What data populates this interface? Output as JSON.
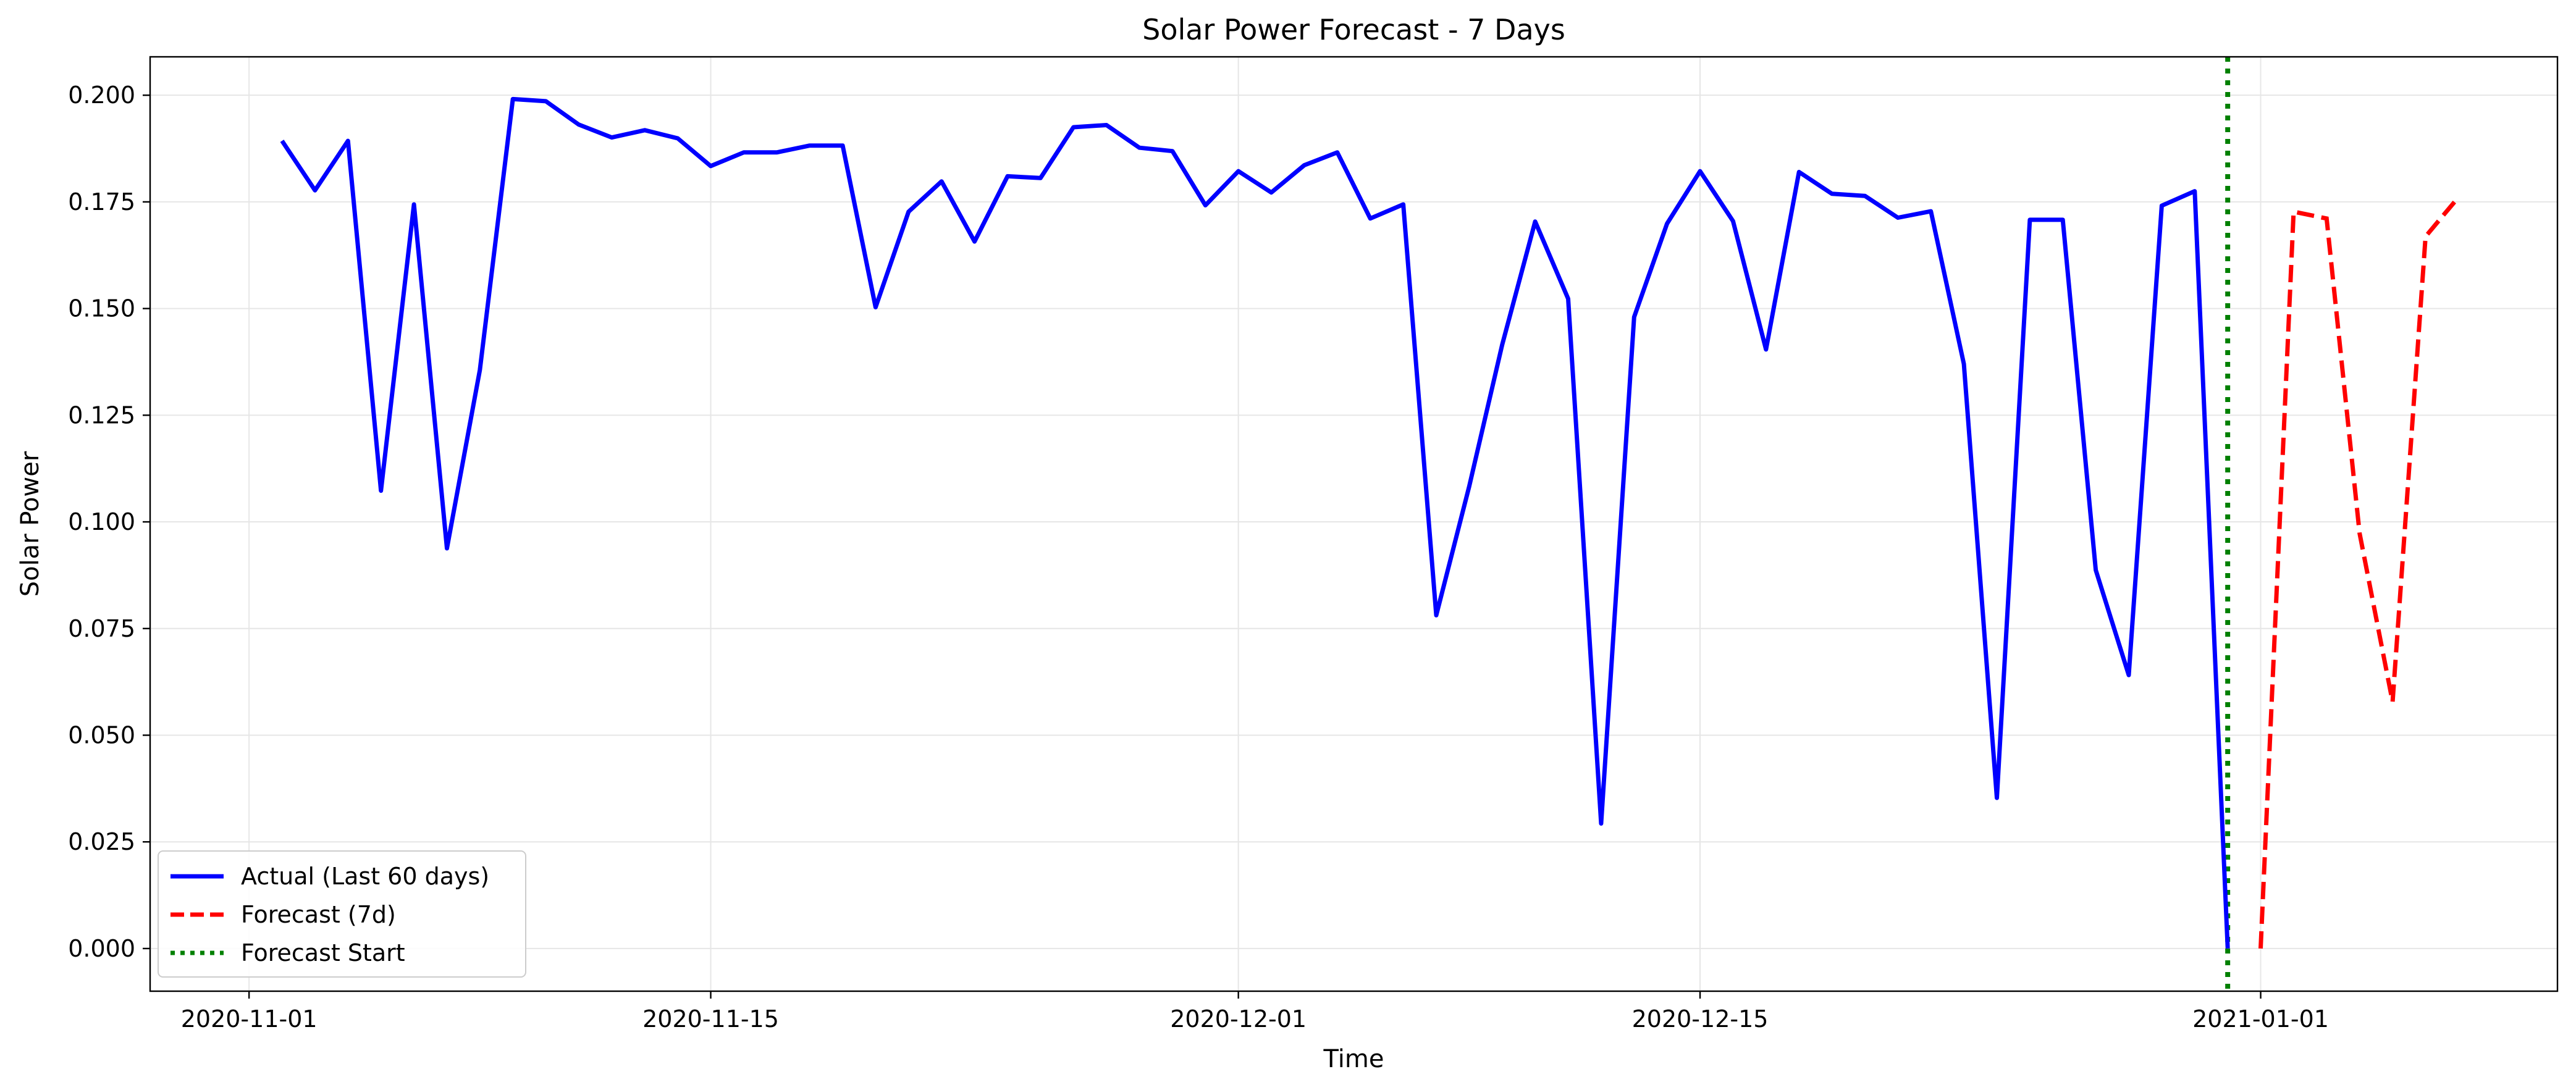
{
  "chart_data": {
    "type": "line",
    "title": "Solar Power Forecast - 7 Days",
    "xlabel": "Time",
    "ylabel": "Solar Power",
    "xlim": [
      "2020-10-29",
      "2021-01-10"
    ],
    "ylim": [
      -0.01,
      0.209
    ],
    "grid": true,
    "legend_position": "lower-left",
    "x_ticks": [
      "2020-11-01",
      "2020-11-15",
      "2020-12-01",
      "2020-12-15",
      "2021-01-01"
    ],
    "y_ticks": [
      "0.000",
      "0.025",
      "0.050",
      "0.075",
      "0.100",
      "0.125",
      "0.150",
      "0.175",
      "0.200"
    ],
    "series": [
      {
        "name": "Actual (Last 60 days)",
        "color": "#0000ff",
        "style": "solid",
        "points": [
          [
            "2020-11-02",
            0.1893
          ],
          [
            "2020-11-03",
            0.1777
          ],
          [
            "2020-11-04",
            0.1893
          ],
          [
            "2020-11-05",
            0.1073
          ],
          [
            "2020-11-06",
            0.1744
          ],
          [
            "2020-11-07",
            0.0938
          ],
          [
            "2020-11-08",
            0.1356
          ],
          [
            "2020-11-09",
            0.1991
          ],
          [
            "2020-11-10",
            0.1986
          ],
          [
            "2020-11-11",
            0.1931
          ],
          [
            "2020-11-12",
            0.1901
          ],
          [
            "2020-11-13",
            0.1918
          ],
          [
            "2020-11-14",
            0.1899
          ],
          [
            "2020-11-15",
            0.1834
          ],
          [
            "2020-11-16",
            0.1866
          ],
          [
            "2020-11-17",
            0.1866
          ],
          [
            "2020-11-18",
            0.1882
          ],
          [
            "2020-11-19",
            0.1882
          ],
          [
            "2020-11-20",
            0.1503
          ],
          [
            "2020-11-21",
            0.1727
          ],
          [
            "2020-11-22",
            0.1798
          ],
          [
            "2020-11-23",
            0.1657
          ],
          [
            "2020-11-24",
            0.181
          ],
          [
            "2020-11-25",
            0.1806
          ],
          [
            "2020-11-26",
            0.1925
          ],
          [
            "2020-11-27",
            0.193
          ],
          [
            "2020-11-28",
            0.1877
          ],
          [
            "2020-11-29",
            0.1869
          ],
          [
            "2020-11-30",
            0.1742
          ],
          [
            "2020-12-01",
            0.1822
          ],
          [
            "2020-12-02",
            0.1772
          ],
          [
            "2020-12-03",
            0.1836
          ],
          [
            "2020-12-04",
            0.1866
          ],
          [
            "2020-12-05",
            0.1711
          ],
          [
            "2020-12-06",
            0.1744
          ],
          [
            "2020-12-07",
            0.0781
          ],
          [
            "2020-12-08",
            0.1083
          ],
          [
            "2020-12-09",
            0.1415
          ],
          [
            "2020-12-10",
            0.1704
          ],
          [
            "2020-12-11",
            0.1523
          ],
          [
            "2020-12-12",
            0.0293
          ],
          [
            "2020-12-13",
            0.148
          ],
          [
            "2020-12-14",
            0.1699
          ],
          [
            "2020-12-15",
            0.1822
          ],
          [
            "2020-12-16",
            0.1705
          ],
          [
            "2020-12-17",
            0.1404
          ],
          [
            "2020-12-18",
            0.182
          ],
          [
            "2020-12-19",
            0.1769
          ],
          [
            "2020-12-20",
            0.1764
          ],
          [
            "2020-12-21",
            0.1713
          ],
          [
            "2020-12-22",
            0.1728
          ],
          [
            "2020-12-23",
            0.137
          ],
          [
            "2020-12-24",
            0.0353
          ],
          [
            "2020-12-25",
            0.1708
          ],
          [
            "2020-12-26",
            0.1708
          ],
          [
            "2020-12-27",
            0.0887
          ],
          [
            "2020-12-28",
            0.0641
          ],
          [
            "2020-12-29",
            0.1741
          ],
          [
            "2020-12-30",
            0.1775
          ],
          [
            "2020-12-31",
            0.0
          ]
        ]
      },
      {
        "name": "Forecast (7d)",
        "color": "#ff0000",
        "style": "dashed",
        "points": [
          [
            "2021-01-01",
            0.0
          ],
          [
            "2021-01-02",
            0.1727
          ],
          [
            "2021-01-03",
            0.1711
          ],
          [
            "2021-01-04",
            0.0973
          ],
          [
            "2021-01-05",
            0.0578
          ],
          [
            "2021-01-06",
            0.1669
          ],
          [
            "2021-01-07",
            0.1761
          ]
        ]
      }
    ],
    "vertical_line": {
      "name": "Forecast Start",
      "x": "2020-12-31",
      "color": "#008000",
      "style": "dotted"
    }
  }
}
